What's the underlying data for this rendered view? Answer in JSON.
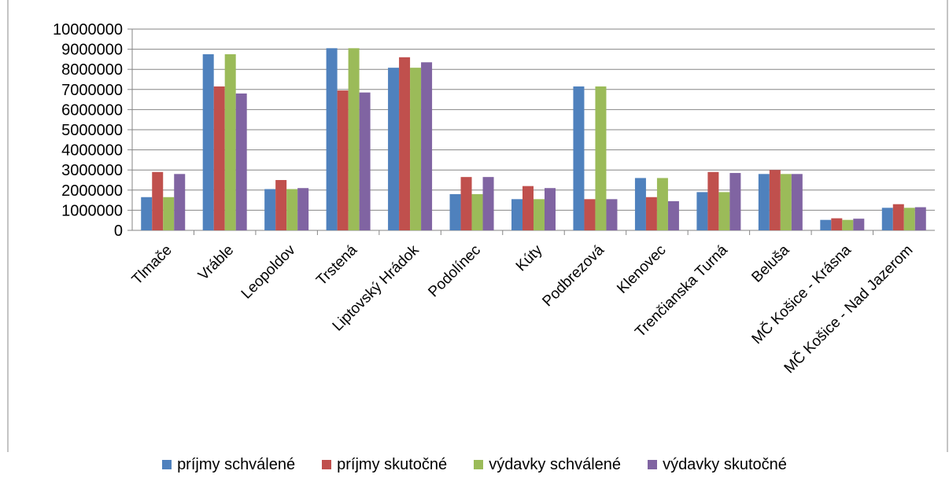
{
  "chart_data": {
    "type": "bar",
    "categories": [
      "Tlmače",
      "Vráble",
      "Leopoldov",
      "Trstená",
      "Liptovský Hrádok",
      "Podolínec",
      "Kúty",
      "Podbrezová",
      "Klenovec",
      "Trenčianska Turná",
      "Beluša",
      "MČ Košice - Krásna",
      "MČ Košice - Nad Jazerom"
    ],
    "series": [
      {
        "name": "príjmy schválené",
        "color": "#4f81bd",
        "values": [
          1650000,
          8750000,
          2050000,
          9050000,
          8080000,
          1800000,
          1550000,
          7150000,
          2600000,
          1900000,
          2800000,
          520000,
          1120000
        ]
      },
      {
        "name": "príjmy skutočné",
        "color": "#c0504d",
        "values": [
          2900000,
          7150000,
          2500000,
          6950000,
          8600000,
          2650000,
          2200000,
          1550000,
          1650000,
          2900000,
          3000000,
          600000,
          1300000
        ]
      },
      {
        "name": "výdavky schválené",
        "color": "#9bbb59",
        "values": [
          1650000,
          8750000,
          2050000,
          9050000,
          8080000,
          1800000,
          1550000,
          7150000,
          2600000,
          1900000,
          2800000,
          520000,
          1120000
        ]
      },
      {
        "name": "výdavky skutočné",
        "color": "#8064a2",
        "values": [
          2800000,
          6800000,
          2100000,
          6850000,
          8350000,
          2650000,
          2100000,
          1550000,
          1450000,
          2850000,
          2800000,
          580000,
          1150000
        ]
      }
    ],
    "ylim": [
      0,
      10000000
    ],
    "yticks": [
      "0",
      "1000000",
      "2000000",
      "3000000",
      "4000000",
      "5000000",
      "6000000",
      "7000000",
      "8000000",
      "9000000",
      "10000000"
    ],
    "ytick_step": 1000000,
    "grid": true,
    "legend_position": "bottom"
  }
}
